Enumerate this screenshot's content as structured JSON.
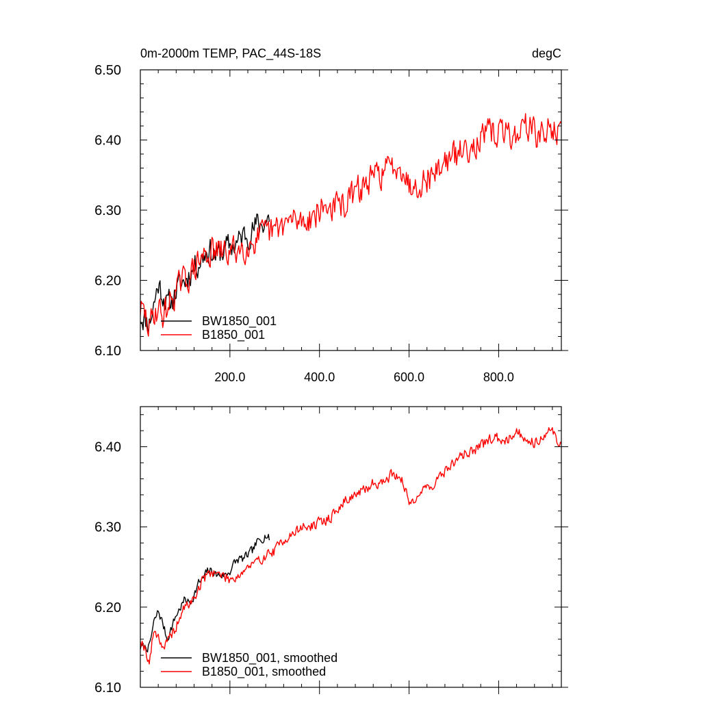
{
  "chart_data": [
    {
      "type": "line",
      "title": "0m-2000m TEMP, PAC_44S-18S",
      "units": "degC",
      "xlim": [
        0,
        940
      ],
      "ylim": [
        6.1,
        6.5
      ],
      "x_ticks": [
        200,
        400,
        600,
        800
      ],
      "x_tick_labels": [
        "200.0",
        "400.0",
        "600.0",
        "800.0"
      ],
      "y_ticks": [
        6.1,
        6.2,
        6.3,
        6.4,
        6.5
      ],
      "y_tick_labels": [
        "6.10",
        "6.20",
        "6.30",
        "6.40",
        "6.50"
      ],
      "legend_position": "bottom-left",
      "series": [
        {
          "name": "BW1850_001",
          "color": "#000000",
          "noise": 0.017,
          "seed": 11,
          "anchors": [
            [
              0,
              6.15
            ],
            [
              10,
              6.145
            ],
            [
              20,
              6.14
            ],
            [
              30,
              6.165
            ],
            [
              40,
              6.195
            ],
            [
              50,
              6.18
            ],
            [
              60,
              6.165
            ],
            [
              70,
              6.17
            ],
            [
              80,
              6.185
            ],
            [
              90,
              6.195
            ],
            [
              100,
              6.2
            ],
            [
              110,
              6.21
            ],
            [
              120,
              6.22
            ],
            [
              130,
              6.225
            ],
            [
              140,
              6.235
            ],
            [
              150,
              6.245
            ],
            [
              160,
              6.24
            ],
            [
              170,
              6.235
            ],
            [
              180,
              6.24
            ],
            [
              190,
              6.245
            ],
            [
              200,
              6.25
            ],
            [
              210,
              6.25
            ],
            [
              220,
              6.255
            ],
            [
              230,
              6.265
            ],
            [
              240,
              6.265
            ],
            [
              250,
              6.27
            ],
            [
              260,
              6.28
            ],
            [
              270,
              6.28
            ],
            [
              280,
              6.285
            ],
            [
              288,
              6.29
            ]
          ]
        },
        {
          "name": "B1850_001",
          "color": "#ff0000",
          "noise": 0.019,
          "seed": 29,
          "anchors": [
            [
              0,
              6.16
            ],
            [
              10,
              6.15
            ],
            [
              20,
              6.13
            ],
            [
              30,
              6.155
            ],
            [
              40,
              6.16
            ],
            [
              50,
              6.15
            ],
            [
              60,
              6.16
            ],
            [
              70,
              6.175
            ],
            [
              80,
              6.185
            ],
            [
              90,
              6.195
            ],
            [
              100,
              6.2
            ],
            [
              120,
              6.215
            ],
            [
              140,
              6.235
            ],
            [
              160,
              6.24
            ],
            [
              180,
              6.24
            ],
            [
              200,
              6.24
            ],
            [
              220,
              6.245
            ],
            [
              240,
              6.25
            ],
            [
              260,
              6.26
            ],
            [
              280,
              6.265
            ],
            [
              300,
              6.27
            ],
            [
              320,
              6.28
            ],
            [
              340,
              6.285
            ],
            [
              360,
              6.285
            ],
            [
              380,
              6.29
            ],
            [
              400,
              6.3
            ],
            [
              420,
              6.305
            ],
            [
              440,
              6.305
            ],
            [
              460,
              6.31
            ],
            [
              480,
              6.325
            ],
            [
              500,
              6.335
            ],
            [
              520,
              6.345
            ],
            [
              540,
              6.355
            ],
            [
              560,
              6.36
            ],
            [
              580,
              6.37
            ],
            [
              600,
              6.335
            ],
            [
              620,
              6.34
            ],
            [
              640,
              6.345
            ],
            [
              660,
              6.355
            ],
            [
              680,
              6.37
            ],
            [
              700,
              6.375
            ],
            [
              720,
              6.385
            ],
            [
              740,
              6.395
            ],
            [
              760,
              6.4
            ],
            [
              780,
              6.41
            ],
            [
              800,
              6.41
            ],
            [
              820,
              6.41
            ],
            [
              840,
              6.405
            ],
            [
              860,
              6.425
            ],
            [
              880,
              6.41
            ],
            [
              900,
              6.405
            ],
            [
              920,
              6.42
            ],
            [
              940,
              6.405
            ]
          ]
        }
      ]
    },
    {
      "type": "line",
      "title": "",
      "xlim": [
        0,
        940
      ],
      "ylim": [
        6.1,
        6.45
      ],
      "x_ticks": [
        200,
        400,
        600,
        800
      ],
      "x_tick_labels": [],
      "y_ticks": [
        6.1,
        6.2,
        6.3,
        6.4
      ],
      "y_tick_labels": [
        "6.10",
        "6.20",
        "6.30",
        "6.40"
      ],
      "legend_position": "bottom-left",
      "series": [
        {
          "name": "BW1850_001, smoothed",
          "color": "#000000",
          "noise": 0.005,
          "seed": 7,
          "anchors": [
            [
              0,
              6.15
            ],
            [
              10,
              6.15
            ],
            [
              20,
              6.15
            ],
            [
              30,
              6.18
            ],
            [
              40,
              6.195
            ],
            [
              50,
              6.18
            ],
            [
              60,
              6.16
            ],
            [
              70,
              6.175
            ],
            [
              80,
              6.19
            ],
            [
              90,
              6.2
            ],
            [
              100,
              6.21
            ],
            [
              110,
              6.205
            ],
            [
              120,
              6.215
            ],
            [
              130,
              6.23
            ],
            [
              140,
              6.235
            ],
            [
              150,
              6.245
            ],
            [
              160,
              6.245
            ],
            [
              170,
              6.24
            ],
            [
              180,
              6.24
            ],
            [
              190,
              6.24
            ],
            [
              200,
              6.245
            ],
            [
              210,
              6.255
            ],
            [
              220,
              6.26
            ],
            [
              230,
              6.26
            ],
            [
              240,
              6.265
            ],
            [
              250,
              6.27
            ],
            [
              260,
              6.28
            ],
            [
              270,
              6.285
            ],
            [
              280,
              6.29
            ],
            [
              288,
              6.285
            ]
          ]
        },
        {
          "name": "B1850_001, smoothed",
          "color": "#ff0000",
          "noise": 0.006,
          "seed": 19,
          "anchors": [
            [
              0,
              6.16
            ],
            [
              10,
              6.15
            ],
            [
              20,
              6.13
            ],
            [
              30,
              6.17
            ],
            [
              40,
              6.165
            ],
            [
              50,
              6.15
            ],
            [
              60,
              6.155
            ],
            [
              70,
              6.165
            ],
            [
              80,
              6.175
            ],
            [
              90,
              6.19
            ],
            [
              100,
              6.2
            ],
            [
              120,
              6.21
            ],
            [
              140,
              6.235
            ],
            [
              160,
              6.245
            ],
            [
              180,
              6.24
            ],
            [
              200,
              6.235
            ],
            [
              220,
              6.24
            ],
            [
              240,
              6.25
            ],
            [
              260,
              6.255
            ],
            [
              280,
              6.265
            ],
            [
              300,
              6.27
            ],
            [
              320,
              6.285
            ],
            [
              340,
              6.29
            ],
            [
              360,
              6.3
            ],
            [
              380,
              6.3
            ],
            [
              400,
              6.305
            ],
            [
              420,
              6.31
            ],
            [
              440,
              6.32
            ],
            [
              460,
              6.335
            ],
            [
              480,
              6.34
            ],
            [
              500,
              6.345
            ],
            [
              520,
              6.355
            ],
            [
              540,
              6.355
            ],
            [
              560,
              6.365
            ],
            [
              580,
              6.365
            ],
            [
              600,
              6.33
            ],
            [
              620,
              6.34
            ],
            [
              640,
              6.35
            ],
            [
              660,
              6.355
            ],
            [
              680,
              6.37
            ],
            [
              700,
              6.38
            ],
            [
              720,
              6.39
            ],
            [
              740,
              6.395
            ],
            [
              760,
              6.4
            ],
            [
              780,
              6.41
            ],
            [
              800,
              6.41
            ],
            [
              820,
              6.41
            ],
            [
              840,
              6.42
            ],
            [
              860,
              6.41
            ],
            [
              880,
              6.405
            ],
            [
              900,
              6.415
            ],
            [
              920,
              6.42
            ],
            [
              940,
              6.4
            ]
          ]
        }
      ]
    }
  ]
}
